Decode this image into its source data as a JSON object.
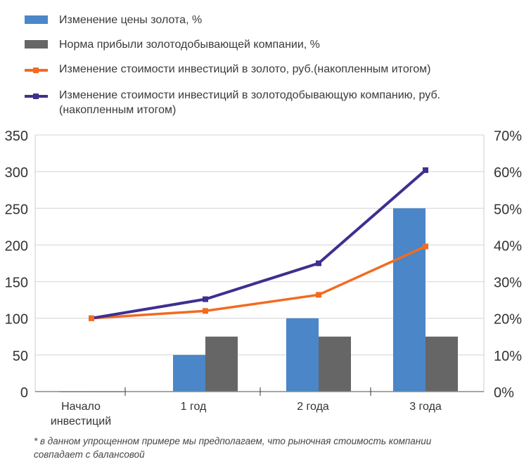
{
  "chart_data": {
    "type": "bar+line",
    "categories": [
      "Начало инвестиций",
      "1 год",
      "2 года",
      "3 года"
    ],
    "category_lines": [
      [
        "Начало",
        "инвестиций"
      ],
      [
        "1 год"
      ],
      [
        "2 года"
      ],
      [
        "3 года"
      ]
    ],
    "left_axis": {
      "ylim": [
        0,
        350
      ],
      "ticks": [
        "0",
        "50",
        "100",
        "150",
        "200",
        "250",
        "300",
        "350"
      ]
    },
    "right_axis": {
      "ylim": [
        0,
        70
      ],
      "ticks": [
        "0%",
        "10%",
        "20%",
        "30%",
        "40%",
        "50%",
        "60%",
        "70%"
      ]
    },
    "series": [
      {
        "name": "Изменение цены золота, %",
        "type": "bar",
        "axis": "right",
        "color": "#4a86c8",
        "values": [
          0,
          10,
          20,
          50
        ]
      },
      {
        "name": "Норма прибыли золотодобывающей компании, %",
        "type": "bar",
        "axis": "right",
        "color": "#666666",
        "values": [
          0,
          15,
          15,
          15
        ]
      },
      {
        "name": "Изменение стоимости инвестиций в золото, руб.(накопленным итогом)",
        "type": "line",
        "axis": "left",
        "color": "#f26b21",
        "values": [
          100,
          110,
          132,
          198
        ]
      },
      {
        "name": "Изменение стоимости инвестиций в золотодобывающую компанию, руб. (накопленным итогом)",
        "name_lines": [
          "Изменение стоимости инвестиций в золотодобывающую компанию, руб.",
          "(накопленным итогом)"
        ],
        "type": "line",
        "axis": "left",
        "color": "#3f2f8f",
        "values": [
          100,
          126,
          175,
          302
        ]
      }
    ],
    "grid": true,
    "legend": "top"
  },
  "footnote": [
    "* в данном упрощенном примере мы предполагаем, что рыночная стоимость компании",
    "совпадает с балансовой"
  ]
}
